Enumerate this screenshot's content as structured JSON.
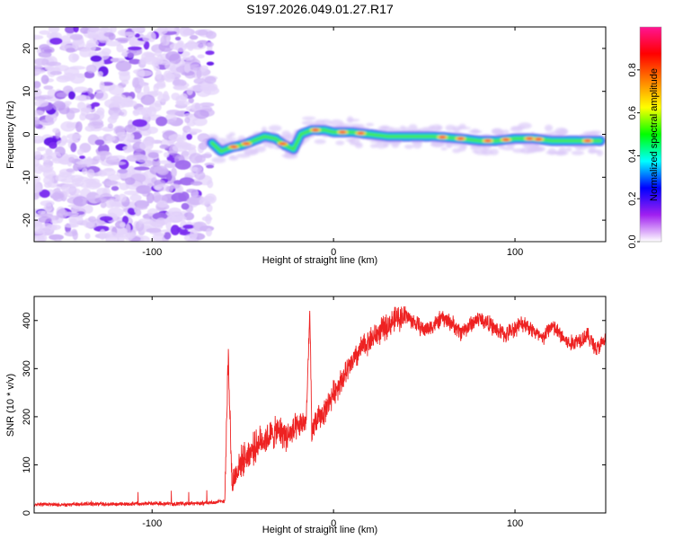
{
  "title": "S197.2026.049.01.27.R17",
  "chart_data": [
    {
      "type": "heatmap",
      "name": "spectrogram",
      "xlabel": "Height of straight line (km)",
      "ylabel": "Frequency (Hz)",
      "xlim": [
        -165,
        150
      ],
      "ylim": [
        -25,
        25
      ],
      "xticks": [
        -100,
        0,
        100
      ],
      "yticks": [
        -20,
        -10,
        0,
        10,
        20
      ],
      "noise_region_x": [
        -165,
        -67
      ],
      "ridge": [
        {
          "x": -67,
          "y": -2
        },
        {
          "x": -62,
          "y": -4
        },
        {
          "x": -56,
          "y": -3
        },
        {
          "x": -50,
          "y": -2.5
        },
        {
          "x": -44,
          "y": -1.5
        },
        {
          "x": -38,
          "y": -0.5
        },
        {
          "x": -32,
          "y": -1
        },
        {
          "x": -27,
          "y": -2.5
        },
        {
          "x": -22,
          "y": -3.5
        },
        {
          "x": -18,
          "y": 0
        },
        {
          "x": -12,
          "y": 1
        },
        {
          "x": -5,
          "y": 1
        },
        {
          "x": 0,
          "y": 0.5
        },
        {
          "x": 10,
          "y": 0.5
        },
        {
          "x": 20,
          "y": 0
        },
        {
          "x": 30,
          "y": -0.5
        },
        {
          "x": 40,
          "y": -0.5
        },
        {
          "x": 55,
          "y": -0.5
        },
        {
          "x": 70,
          "y": -1
        },
        {
          "x": 80,
          "y": -1.5
        },
        {
          "x": 90,
          "y": -1.5
        },
        {
          "x": 100,
          "y": -1
        },
        {
          "x": 110,
          "y": -1
        },
        {
          "x": 120,
          "y": -1.5
        },
        {
          "x": 135,
          "y": -1.5
        },
        {
          "x": 147,
          "y": -1.5
        }
      ],
      "colorbar": {
        "label": "Normalized spectral amplitude",
        "range": [
          0,
          1
        ],
        "ticks": [
          0.0,
          0.2,
          0.4,
          0.6,
          0.8
        ],
        "tick_labels": [
          "0.0",
          "0.2",
          "0.4",
          "0.6",
          "0.8"
        ],
        "colors": [
          "#ffffff",
          "#a020f0",
          "#0000ff",
          "#00ffff",
          "#00ff00",
          "#ffff00",
          "#ff8000",
          "#ff0000",
          "#ff1493"
        ]
      }
    },
    {
      "type": "line",
      "name": "snr",
      "xlabel": "Height of straight line (km)",
      "ylabel": "SNR (10 * v/v)",
      "xlim": [
        -165,
        150
      ],
      "ylim": [
        0,
        450
      ],
      "xticks": [
        -100,
        0,
        100
      ],
      "yticks": [
        0,
        100,
        200,
        300,
        400
      ],
      "color": "#ee2222",
      "x": [
        -165,
        -150,
        -135,
        -120,
        -105,
        -90,
        -75,
        -65,
        -60,
        -58,
        -56,
        -54,
        -52,
        -50,
        -45,
        -40,
        -35,
        -30,
        -25,
        -20,
        -15,
        -13,
        -12,
        -11,
        -10,
        -5,
        0,
        5,
        10,
        15,
        20,
        25,
        30,
        35,
        40,
        45,
        50,
        55,
        60,
        65,
        70,
        75,
        80,
        85,
        90,
        95,
        100,
        105,
        110,
        115,
        120,
        125,
        130,
        135,
        140,
        145,
        150
      ],
      "y": [
        18,
        17,
        19,
        18,
        20,
        19,
        20,
        22,
        25,
        330,
        60,
        80,
        100,
        110,
        130,
        150,
        160,
        170,
        160,
        175,
        195,
        420,
        150,
        180,
        190,
        210,
        250,
        280,
        310,
        340,
        360,
        375,
        390,
        405,
        410,
        395,
        380,
        390,
        405,
        395,
        375,
        390,
        405,
        395,
        380,
        370,
        385,
        395,
        380,
        360,
        390,
        370,
        350,
        360,
        370,
        340,
        360
      ]
    }
  ]
}
